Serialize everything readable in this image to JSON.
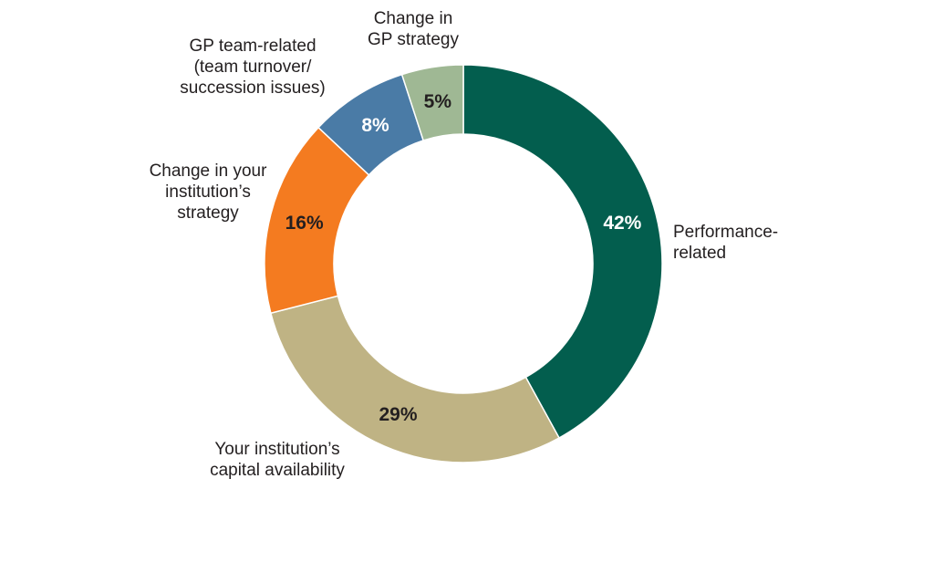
{
  "chart_data": {
    "type": "pie",
    "variant": "donut",
    "title": "",
    "slices": [
      {
        "label": "Performance-related",
        "label_lines": [
          "Performance-",
          "related"
        ],
        "value": 42,
        "display": "42%",
        "color": "#035e4e",
        "text_color": "#ffffff"
      },
      {
        "label": "Your institution’s capital availability",
        "label_lines": [
          "Your institution’s",
          "capital availability"
        ],
        "value": 29,
        "display": "29%",
        "color": "#bfb384",
        "text_color": "#231f20"
      },
      {
        "label": "Change in your institution’s strategy",
        "label_lines": [
          "Change in your",
          "institution’s",
          "strategy"
        ],
        "value": 16,
        "display": "16%",
        "color": "#f47b20",
        "text_color": "#231f20"
      },
      {
        "label": "GP team-related (team turnover/ succession issues)",
        "label_lines": [
          "GP team-related",
          "(team turnover/",
          "succession issues)"
        ],
        "value": 8,
        "display": "8%",
        "color": "#4a7ba6",
        "text_color": "#ffffff"
      },
      {
        "label": "Change in GP strategy",
        "label_lines": [
          "Change in",
          "GP strategy"
        ],
        "value": 5,
        "display": "5%",
        "color": "#9fb894",
        "text_color": "#231f20"
      }
    ],
    "start": "12 o'clock",
    "direction": "clockwise",
    "legend": "none (labels placed beside slices)"
  }
}
